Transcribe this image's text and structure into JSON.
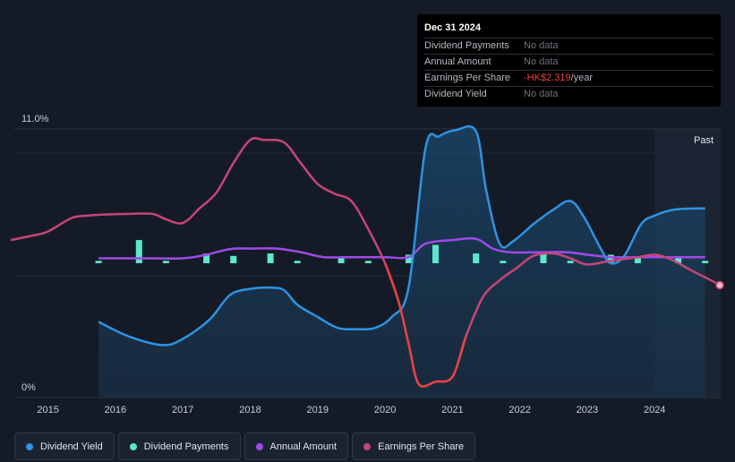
{
  "tooltip": {
    "date": "Dec 31 2024",
    "rows": [
      {
        "label": "Dividend Payments",
        "value": "No data",
        "unit": ""
      },
      {
        "label": "Annual Amount",
        "value": "No data",
        "unit": ""
      },
      {
        "label": "Earnings Per Share",
        "value": "-HK$2.319",
        "unit": "/year"
      },
      {
        "label": "Dividend Yield",
        "value": "No data",
        "unit": ""
      }
    ]
  },
  "legend": [
    {
      "label": "Dividend Yield",
      "color": "#2e93e3"
    },
    {
      "label": "Dividend Payments",
      "color": "#5de7cc"
    },
    {
      "label": "Annual Amount",
      "color": "#9e4ae8"
    },
    {
      "label": "Earnings Per Share",
      "color": "#c74577"
    }
  ],
  "chart_data": {
    "type": "line",
    "y_axis": {
      "top_label": "11.0%",
      "bottom_label": "0%",
      "range": [
        0,
        11
      ]
    },
    "x_range": [
      2014.5,
      2024.98
    ],
    "x_ticks": [
      "2015",
      "2016",
      "2017",
      "2018",
      "2019",
      "2020",
      "2021",
      "2022",
      "2023",
      "2024"
    ],
    "past_label": "Past",
    "past_start": 2024.0,
    "series": [
      {
        "name": "Dividend Yield",
        "unit": "%",
        "color": "#2e93e3",
        "points": [
          [
            2015.75,
            3.1
          ],
          [
            2016.2,
            2.5
          ],
          [
            2016.7,
            2.15
          ],
          [
            2017.0,
            2.4
          ],
          [
            2017.4,
            3.2
          ],
          [
            2017.7,
            4.2
          ],
          [
            2018.0,
            4.45
          ],
          [
            2018.3,
            4.5
          ],
          [
            2018.5,
            4.4
          ],
          [
            2018.7,
            3.8
          ],
          [
            2019.0,
            3.3
          ],
          [
            2019.3,
            2.85
          ],
          [
            2019.6,
            2.8
          ],
          [
            2019.85,
            2.85
          ],
          [
            2020.1,
            3.3
          ],
          [
            2020.35,
            4.5
          ],
          [
            2020.6,
            10.2
          ],
          [
            2020.8,
            10.7
          ],
          [
            2021.05,
            10.95
          ],
          [
            2021.35,
            10.9
          ],
          [
            2021.5,
            8.5
          ],
          [
            2021.7,
            6.3
          ],
          [
            2021.9,
            6.4
          ],
          [
            2022.2,
            7.1
          ],
          [
            2022.5,
            7.7
          ],
          [
            2022.75,
            8.05
          ],
          [
            2022.95,
            7.4
          ],
          [
            2023.2,
            6.1
          ],
          [
            2023.35,
            5.5
          ],
          [
            2023.55,
            5.8
          ],
          [
            2023.8,
            7.1
          ],
          [
            2024.0,
            7.45
          ],
          [
            2024.3,
            7.7
          ],
          [
            2024.75,
            7.75
          ]
        ]
      },
      {
        "name": "Dividend Payments",
        "unit": "bars",
        "color": "#5de7cc",
        "bars": [
          [
            2015.75,
            0.1
          ],
          [
            2016.35,
            0.95
          ],
          [
            2016.75,
            0.1
          ],
          [
            2017.35,
            0.4
          ],
          [
            2017.75,
            0.3
          ],
          [
            2018.3,
            0.4
          ],
          [
            2018.7,
            0.1
          ],
          [
            2019.35,
            0.2
          ],
          [
            2019.75,
            0.1
          ],
          [
            2020.35,
            0.35
          ],
          [
            2020.75,
            0.75
          ],
          [
            2021.35,
            0.4
          ],
          [
            2021.75,
            0.1
          ],
          [
            2022.35,
            0.4
          ],
          [
            2022.75,
            0.1
          ],
          [
            2023.35,
            0.35
          ],
          [
            2023.75,
            0.2
          ],
          [
            2024.35,
            0.2
          ],
          [
            2024.75,
            0.1
          ]
        ]
      },
      {
        "name": "Annual Amount",
        "unit": "%",
        "color": "#9e4ae8",
        "points": [
          [
            2015.75,
            5.7
          ],
          [
            2016.5,
            5.7
          ],
          [
            2017.0,
            5.7
          ],
          [
            2017.35,
            5.85
          ],
          [
            2017.7,
            6.08
          ],
          [
            2018.0,
            6.1
          ],
          [
            2018.4,
            6.1
          ],
          [
            2018.75,
            5.95
          ],
          [
            2019.1,
            5.75
          ],
          [
            2019.5,
            5.75
          ],
          [
            2020.0,
            5.75
          ],
          [
            2020.35,
            5.75
          ],
          [
            2020.6,
            6.3
          ],
          [
            2021.0,
            6.45
          ],
          [
            2021.35,
            6.5
          ],
          [
            2021.6,
            6.1
          ],
          [
            2021.85,
            5.95
          ],
          [
            2022.3,
            5.95
          ],
          [
            2022.7,
            5.95
          ],
          [
            2023.0,
            5.85
          ],
          [
            2023.35,
            5.75
          ],
          [
            2023.7,
            5.75
          ],
          [
            2024.0,
            5.75
          ],
          [
            2024.75,
            5.75
          ]
        ]
      },
      {
        "name": "Earnings Per Share",
        "unit": "%",
        "color": "#c74577",
        "points": [
          [
            2014.45,
            6.45
          ],
          [
            2014.75,
            6.62
          ],
          [
            2015.0,
            6.8
          ],
          [
            2015.35,
            7.35
          ],
          [
            2015.6,
            7.45
          ],
          [
            2015.9,
            7.5
          ],
          [
            2016.2,
            7.52
          ],
          [
            2016.55,
            7.52
          ],
          [
            2016.75,
            7.3
          ],
          [
            2017.0,
            7.15
          ],
          [
            2017.25,
            7.75
          ],
          [
            2017.5,
            8.4
          ],
          [
            2017.75,
            9.6
          ],
          [
            2018.0,
            10.55
          ],
          [
            2018.2,
            10.55
          ],
          [
            2018.5,
            10.45
          ],
          [
            2018.75,
            9.6
          ],
          [
            2019.0,
            8.75
          ],
          [
            2019.25,
            8.35
          ],
          [
            2019.5,
            8.05
          ],
          [
            2019.75,
            6.9
          ],
          [
            2020.0,
            5.5
          ],
          [
            2020.2,
            3.95
          ],
          [
            2020.35,
            2.2
          ],
          [
            2020.5,
            0.55
          ],
          [
            2020.75,
            0.65
          ],
          [
            2021.0,
            0.85
          ],
          [
            2021.2,
            2.5
          ],
          [
            2021.45,
            4.1
          ],
          [
            2021.7,
            4.8
          ],
          [
            2021.95,
            5.3
          ],
          [
            2022.2,
            5.8
          ],
          [
            2022.5,
            5.9
          ],
          [
            2022.75,
            5.7
          ],
          [
            2023.0,
            5.45
          ],
          [
            2023.35,
            5.6
          ],
          [
            2023.75,
            5.75
          ],
          [
            2024.0,
            5.85
          ],
          [
            2024.25,
            5.65
          ],
          [
            2024.55,
            5.2
          ],
          [
            2024.98,
            4.6
          ]
        ]
      }
    ]
  }
}
